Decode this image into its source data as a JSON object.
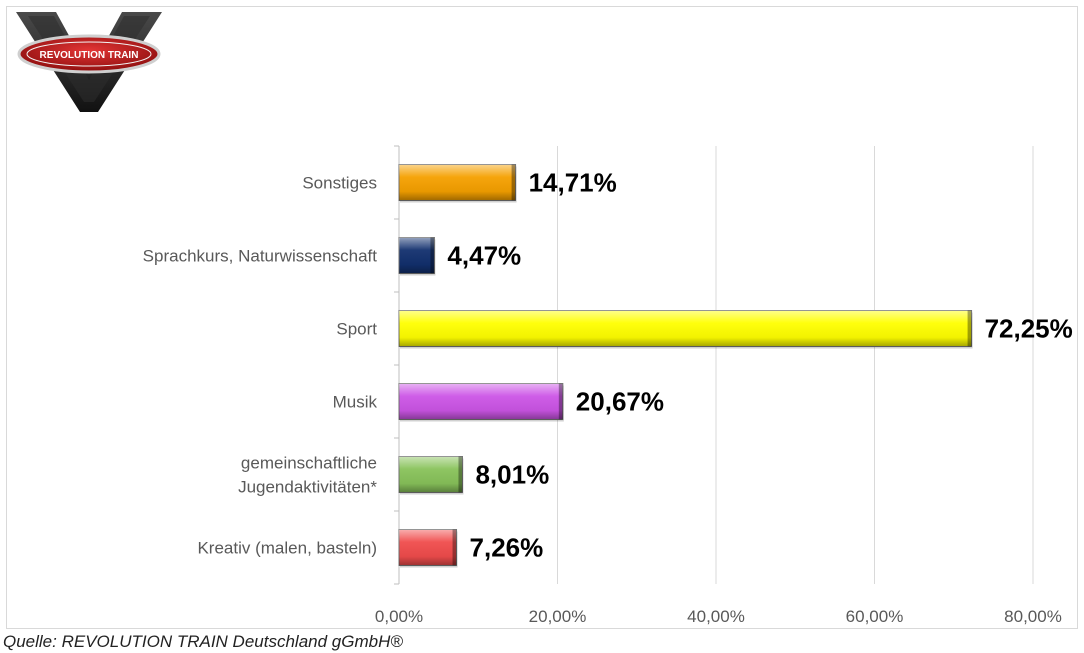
{
  "logo": {
    "text": "REVOLUTION TRAIN"
  },
  "source": "Quelle: REVOLUTION TRAIN Deutschland gGmbH®",
  "chart_data": {
    "type": "bar",
    "orientation": "horizontal",
    "title": "",
    "xlabel": "",
    "ylabel": "",
    "xlim": [
      0,
      80
    ],
    "x_ticks": [
      "0,00%",
      "20,00%",
      "40,00%",
      "60,00%",
      "80,00%"
    ],
    "grid": "vertical gridlines",
    "categories": [
      [
        "Sonstiges"
      ],
      [
        "Sprachkurs, Naturwissenschaft"
      ],
      [
        "Sport"
      ],
      [
        "Musik"
      ],
      [
        "gemeinschaftliche",
        "Jugendaktivitäten*"
      ],
      [
        "Kreativ (malen, basteln)"
      ]
    ],
    "values": [
      14.71,
      4.47,
      72.25,
      20.67,
      8.01,
      7.26
    ],
    "value_labels": [
      "14,71%",
      "4,47%",
      "72,25%",
      "20,67%",
      "8,01%",
      "7,26%"
    ],
    "colors": [
      "#f5a000",
      "#12306e",
      "#ffff00",
      "#cc55e6",
      "#88c25a",
      "#f04c4c"
    ]
  }
}
